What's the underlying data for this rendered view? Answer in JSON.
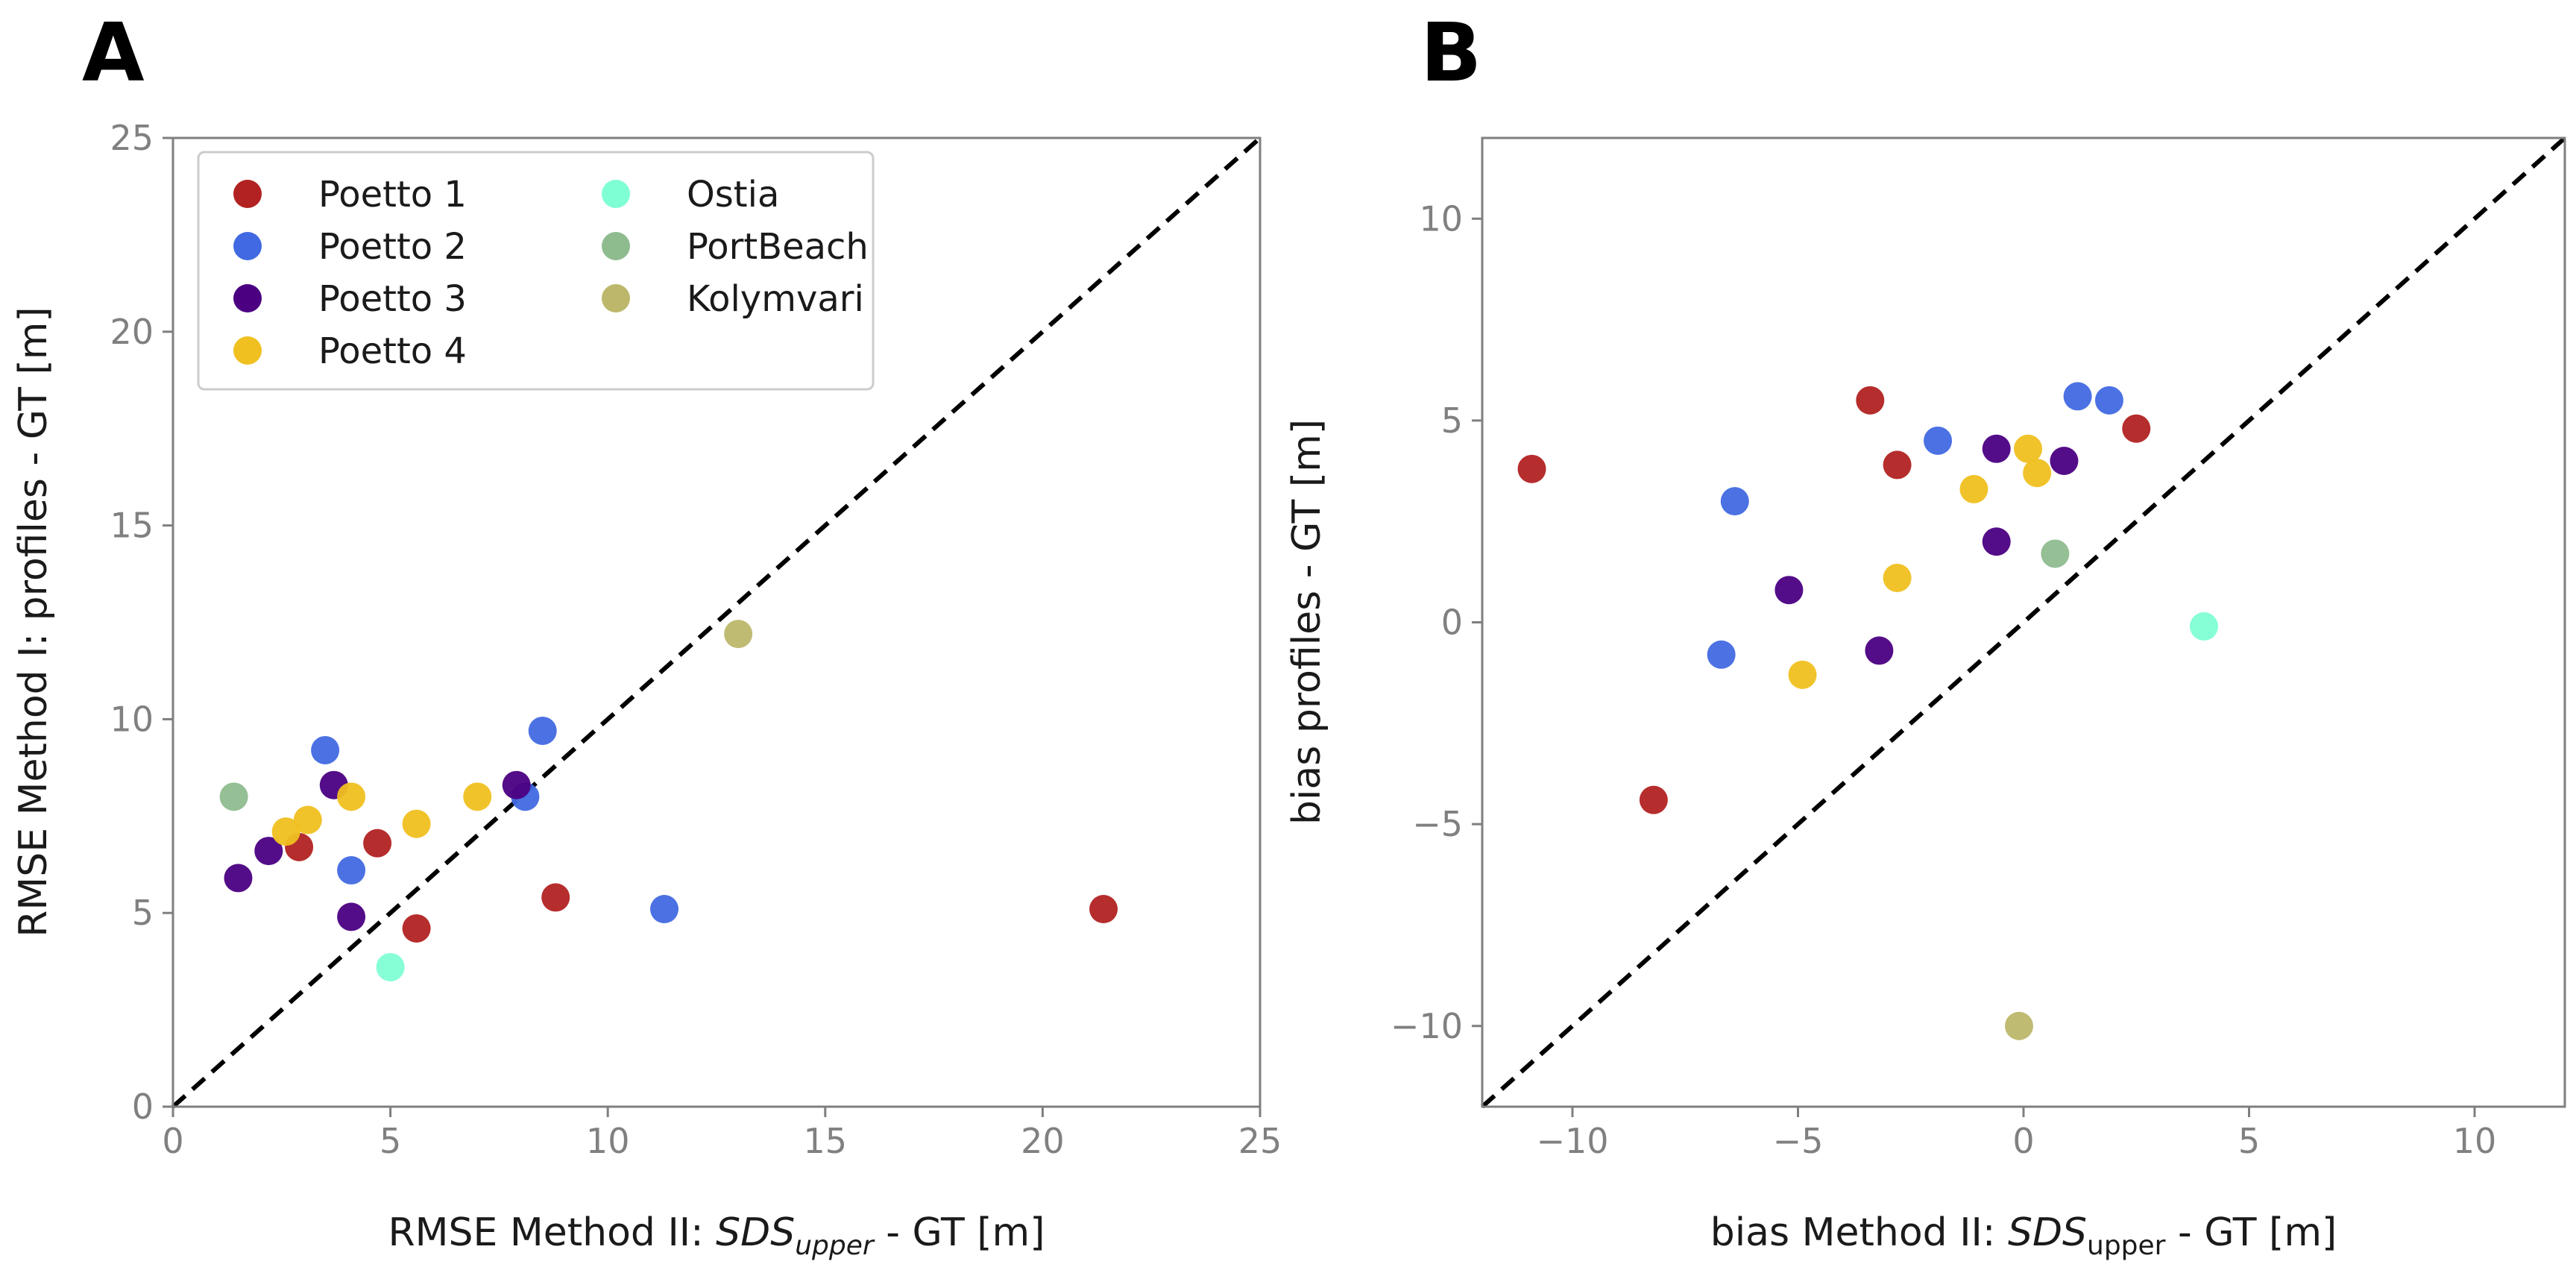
{
  "chart_data": [
    {
      "panel": "A",
      "type": "scatter",
      "title": "",
      "xlabel": {
        "prefix": "RMSE Method II: ",
        "italic": "SDS",
        "sub": "upper",
        "suffix": " - GT [m]"
      },
      "ylabel": "RMSE Method I: profiles - GT [m]",
      "xlim": [
        0,
        25
      ],
      "ylim": [
        0,
        25
      ],
      "xticks": [
        0,
        5,
        10,
        15,
        20,
        25
      ],
      "yticks": [
        0,
        5,
        10,
        15,
        20,
        25
      ],
      "xtick_labels": [
        "0",
        "5",
        "10",
        "15",
        "20",
        "25"
      ],
      "ytick_labels": [
        "0",
        "5",
        "10",
        "15",
        "20",
        "25"
      ],
      "diagonal": [
        [
          0,
          0
        ],
        [
          25,
          25
        ]
      ],
      "legend_position": "top-left",
      "series": [
        {
          "name": "Poetto 1",
          "color": "#b22222",
          "points": [
            [
              2.9,
              6.7
            ],
            [
              4.7,
              6.8
            ],
            [
              5.6,
              4.6
            ],
            [
              8.8,
              5.4
            ],
            [
              21.4,
              5.1
            ]
          ]
        },
        {
          "name": "Poetto 2",
          "color": "#4169e1",
          "points": [
            [
              3.5,
              9.2
            ],
            [
              4.1,
              6.1
            ],
            [
              8.1,
              8.0
            ],
            [
              8.5,
              9.7
            ],
            [
              11.3,
              5.1
            ]
          ]
        },
        {
          "name": "Poetto 3",
          "color": "#4b0082",
          "points": [
            [
              1.5,
              5.9
            ],
            [
              2.2,
              6.6
            ],
            [
              3.7,
              8.3
            ],
            [
              4.1,
              4.9
            ],
            [
              7.9,
              8.3
            ]
          ]
        },
        {
          "name": "Poetto 4",
          "color": "#f0c020",
          "points": [
            [
              2.6,
              7.1
            ],
            [
              3.1,
              7.4
            ],
            [
              4.1,
              8.0
            ],
            [
              5.6,
              7.3
            ],
            [
              7.0,
              8.0
            ]
          ]
        },
        {
          "name": "Ostia",
          "color": "#7fffd4",
          "points": [
            [
              5.0,
              3.6
            ]
          ]
        },
        {
          "name": "PortBeach",
          "color": "#8fbc8f",
          "points": [
            [
              1.4,
              8.0
            ]
          ]
        },
        {
          "name": "Kolymvari",
          "color": "#bdb76b",
          "points": [
            [
              13.0,
              12.2
            ]
          ]
        }
      ]
    },
    {
      "panel": "B",
      "type": "scatter",
      "title": "",
      "xlabel": {
        "prefix": "bias Method II: ",
        "italic": "SDS",
        "sub": "upper",
        "suffix": " - GT [m]"
      },
      "ylabel": "bias profiles - GT [m]",
      "xlim": [
        -12,
        12
      ],
      "ylim": [
        -12,
        12
      ],
      "xticks": [
        -10,
        -5,
        0,
        5,
        10
      ],
      "yticks": [
        -10,
        -5,
        0,
        5,
        10
      ],
      "xtick_labels": [
        "−10",
        "−5",
        "0",
        "5",
        "10"
      ],
      "ytick_labels": [
        "−10",
        "−5",
        "0",
        "5",
        "10"
      ],
      "diagonal": [
        [
          -12,
          -12
        ],
        [
          12,
          12
        ]
      ],
      "series": [
        {
          "name": "Poetto 1",
          "color": "#b22222",
          "points": [
            [
              -10.9,
              3.8
            ],
            [
              -8.2,
              -4.4
            ],
            [
              -3.4,
              5.5
            ],
            [
              -2.8,
              3.9
            ],
            [
              2.5,
              4.8
            ]
          ]
        },
        {
          "name": "Poetto 2",
          "color": "#4169e1",
          "points": [
            [
              -6.7,
              -0.8
            ],
            [
              -6.4,
              3.0
            ],
            [
              -1.9,
              4.5
            ],
            [
              1.2,
              5.6
            ],
            [
              1.9,
              5.5
            ]
          ]
        },
        {
          "name": "Poetto 3",
          "color": "#4b0082",
          "points": [
            [
              -5.2,
              0.8
            ],
            [
              -3.2,
              -0.7
            ],
            [
              -0.6,
              2.0
            ],
            [
              -0.6,
              4.3
            ],
            [
              0.9,
              4.0
            ]
          ]
        },
        {
          "name": "Poetto 4",
          "color": "#f0c020",
          "points": [
            [
              -4.9,
              -1.3
            ],
            [
              -2.8,
              1.1
            ],
            [
              -1.1,
              3.3
            ],
            [
              0.1,
              4.3
            ],
            [
              0.3,
              3.7
            ]
          ]
        },
        {
          "name": "Ostia",
          "color": "#7fffd4",
          "points": [
            [
              4.0,
              -0.1
            ]
          ]
        },
        {
          "name": "PortBeach",
          "color": "#8fbc8f",
          "points": [
            [
              0.7,
              1.7
            ]
          ]
        },
        {
          "name": "Kolymvari",
          "color": "#bdb76b",
          "points": [
            [
              -0.1,
              -10.0
            ]
          ]
        }
      ]
    }
  ]
}
